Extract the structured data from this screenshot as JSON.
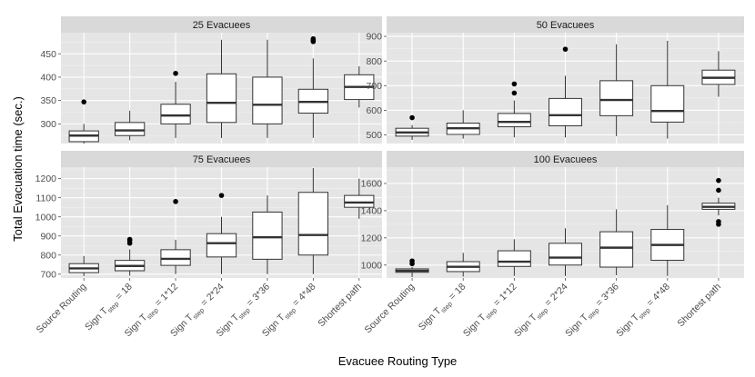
{
  "chart_data": {
    "type": "boxplot",
    "xlabel": "Evacuee Routing Type",
    "ylabel": "Total Evacuation time (sec.)",
    "categories": [
      {
        "main": "Source Routing",
        "sub": "",
        "tail": ""
      },
      {
        "main": "Sign T",
        "sub": "step",
        "tail": " = 18"
      },
      {
        "main": "Sign T",
        "sub": "step",
        "tail": " = 1*12"
      },
      {
        "main": "Sign T",
        "sub": "step",
        "tail": " = 2*24"
      },
      {
        "main": "Sign T",
        "sub": "step",
        "tail": " = 3*36"
      },
      {
        "main": "Sign T",
        "sub": "step",
        "tail": " = 4*48"
      },
      {
        "main": "Shortest path",
        "sub": "",
        "tail": ""
      }
    ],
    "panels": [
      {
        "title": "25 Evacuees",
        "ylim": [
          258,
          495
        ],
        "yticks": [
          300,
          350,
          400,
          450
        ],
        "boxes": [
          {
            "low": 258,
            "q1": 262,
            "median": 275,
            "q3": 285,
            "high": 300,
            "outliers": [
              347
            ]
          },
          {
            "low": 265,
            "q1": 275,
            "median": 286,
            "q3": 303,
            "high": 328,
            "outliers": []
          },
          {
            "low": 270,
            "q1": 300,
            "median": 318,
            "q3": 342,
            "high": 390,
            "outliers": [
              408
            ]
          },
          {
            "low": 270,
            "q1": 303,
            "median": 345,
            "q3": 407,
            "high": 480,
            "outliers": []
          },
          {
            "low": 270,
            "q1": 300,
            "median": 341,
            "q3": 400,
            "high": 480,
            "outliers": []
          },
          {
            "low": 270,
            "q1": 323,
            "median": 347,
            "q3": 374,
            "high": 440,
            "outliers": [
              476,
              479,
              482
            ]
          },
          {
            "low": 335,
            "q1": 352,
            "median": 379,
            "q3": 405,
            "high": 423,
            "outliers": []
          }
        ]
      },
      {
        "title": "50 Evacuees",
        "ylim": [
          465,
          915
        ],
        "yticks": [
          500,
          600,
          700,
          800,
          900
        ],
        "boxes": [
          {
            "low": 480,
            "q1": 495,
            "median": 510,
            "q3": 527,
            "high": 540,
            "outliers": [
              570
            ]
          },
          {
            "low": 485,
            "q1": 502,
            "median": 527,
            "q3": 548,
            "high": 600,
            "outliers": []
          },
          {
            "low": 490,
            "q1": 533,
            "median": 553,
            "q3": 587,
            "high": 640,
            "outliers": [
              670,
              707
            ]
          },
          {
            "low": 490,
            "q1": 537,
            "median": 580,
            "q3": 648,
            "high": 740,
            "outliers": [
              848
            ]
          },
          {
            "low": 495,
            "q1": 578,
            "median": 642,
            "q3": 720,
            "high": 868,
            "outliers": []
          },
          {
            "low": 485,
            "q1": 552,
            "median": 597,
            "q3": 700,
            "high": 882,
            "outliers": []
          },
          {
            "low": 655,
            "q1": 705,
            "median": 732,
            "q3": 763,
            "high": 840,
            "outliers": []
          }
        ]
      },
      {
        "title": "75 Evacuees",
        "ylim": [
          680,
          1260
        ],
        "yticks": [
          700,
          800,
          900,
          1000,
          1100,
          1200
        ],
        "boxes": [
          {
            "low": 690,
            "q1": 708,
            "median": 730,
            "q3": 755,
            "high": 795,
            "outliers": []
          },
          {
            "low": 692,
            "q1": 718,
            "median": 743,
            "q3": 772,
            "high": 830,
            "outliers": [
              862,
              875,
              882
            ]
          },
          {
            "low": 700,
            "q1": 746,
            "median": 780,
            "q3": 828,
            "high": 880,
            "outliers": [
              1080
            ]
          },
          {
            "low": 700,
            "q1": 790,
            "median": 862,
            "q3": 912,
            "high": 1000,
            "outliers": [
              1112
            ]
          },
          {
            "low": 700,
            "q1": 778,
            "median": 893,
            "q3": 1025,
            "high": 1112,
            "outliers": []
          },
          {
            "low": 700,
            "q1": 800,
            "median": 905,
            "q3": 1128,
            "high": 1255,
            "outliers": []
          },
          {
            "low": 990,
            "q1": 1050,
            "median": 1075,
            "q3": 1112,
            "high": 1200,
            "outliers": []
          }
        ]
      },
      {
        "title": "100 Evacuees",
        "ylim": [
          905,
          1720
        ],
        "yticks": [
          1000,
          1200,
          1400,
          1600
        ],
        "boxes": [
          {
            "low": 912,
            "q1": 947,
            "median": 958,
            "q3": 972,
            "high": 985,
            "outliers": [
              1010,
              1030
            ]
          },
          {
            "low": 915,
            "q1": 952,
            "median": 987,
            "q3": 1025,
            "high": 1090,
            "outliers": []
          },
          {
            "low": 920,
            "q1": 990,
            "median": 1025,
            "q3": 1105,
            "high": 1190,
            "outliers": []
          },
          {
            "low": 920,
            "q1": 1000,
            "median": 1055,
            "q3": 1160,
            "high": 1270,
            "outliers": []
          },
          {
            "low": 925,
            "q1": 985,
            "median": 1128,
            "q3": 1245,
            "high": 1410,
            "outliers": []
          },
          {
            "low": 920,
            "q1": 1035,
            "median": 1148,
            "q3": 1262,
            "high": 1440,
            "outliers": []
          },
          {
            "low": 1365,
            "q1": 1410,
            "median": 1428,
            "q3": 1455,
            "high": 1495,
            "outliers": [
              1300,
              1320,
              1550,
              1622
            ]
          }
        ]
      }
    ]
  }
}
